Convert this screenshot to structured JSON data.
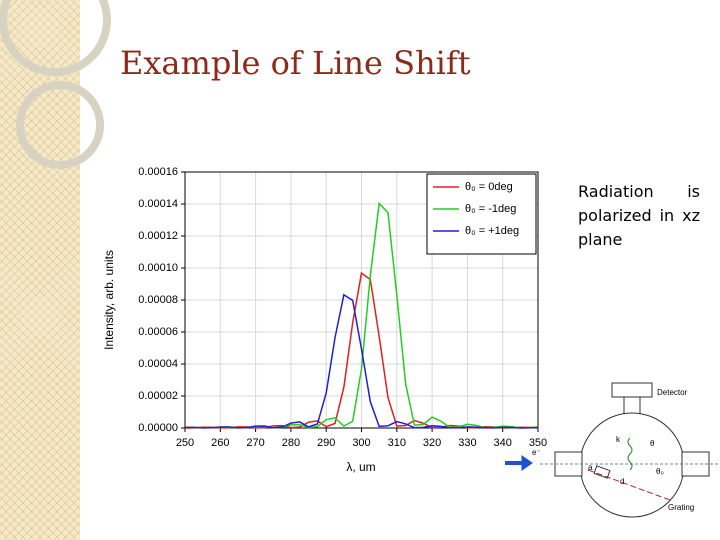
{
  "slide": {
    "title": "Example of Line Shift",
    "text": "Radiation is polarized in xz plane"
  },
  "chart_data": {
    "type": "line",
    "xlabel": "λ, um",
    "ylabel": "Intensity, arb. units",
    "x": [
      250,
      252.5,
      255,
      257.5,
      260,
      262.5,
      265,
      267.5,
      270,
      272.5,
      275,
      277.5,
      280,
      282.5,
      285,
      287.5,
      290,
      292.5,
      295,
      297.5,
      300,
      302.5,
      305,
      307.5,
      310,
      312.5,
      315,
      317.5,
      320,
      322.5,
      325,
      327.5,
      330,
      332.5,
      335,
      337.5,
      340,
      342.5,
      345,
      347.5,
      350
    ],
    "series": [
      {
        "name": "θ₀ = 0deg",
        "color": "#e02020",
        "values": [
          4e-08,
          9e-08,
          4.3e-07,
          4.3e-07,
          6e-08,
          1.4e-07,
          7.1e-07,
          7.2e-07,
          1e-07,
          2.6e-07,
          1.36e-06,
          1.46e-06,
          2.2e-07,
          6.1e-07,
          3.58e-06,
          4.41e-06,
          8e-07,
          2.89e-06,
          2.55e-05,
          6.57e-05,
          9.68e-05,
          9.28e-05,
          5.73e-05,
          1.9e-05,
          1.2e-06,
          1.58e-06,
          4.68e-06,
          2.96e-06,
          2.7e-07,
          4.5e-07,
          1.59e-06,
          1.15e-06,
          1.2e-07,
          2.1e-07,
          7.9e-07,
          6e-07,
          6e-08,
          1.2e-07,
          4.7e-07,
          3.7e-07,
          4e-08
        ]
      },
      {
        "name": "θ₀ = -1deg",
        "color": "#20d020",
        "values": [
          4.2e-07,
          4.1e-07,
          5e-08,
          1.3e-07,
          6.3e-07,
          6.2e-07,
          8e-08,
          2e-07,
          1.03e-06,
          1.04e-06,
          1.5e-07,
          3.7e-07,
          1.97e-06,
          2.11e-06,
          3.2e-07,
          8.8e-07,
          5.19e-06,
          6.39e-06,
          1.16e-06,
          4.19e-06,
          3.69e-05,
          9.53e-05,
          0.0001403,
          0.0001346,
          8.31e-05,
          2.76e-05,
          1.73e-06,
          2.29e-06,
          6.79e-06,
          4.28e-06,
          3.9e-07,
          6.6e-07,
          2.31e-06,
          1.66e-06,
          1.7e-07,
          3e-07,
          1.15e-06,
          8.8e-07,
          9e-08,
          1.8e-07,
          6.9e-07
        ]
      },
      {
        "name": "θ₀ = +1deg",
        "color": "#2020d0",
        "values": [
          3.7e-07,
          3.7e-07,
          5e-08,
          1.2e-07,
          6.1e-07,
          6.2e-07,
          9e-08,
          2.2e-07,
          1.17e-06,
          1.25e-06,
          1.9e-07,
          5.2e-07,
          3.08e-06,
          3.79e-06,
          6.9e-07,
          2.49e-06,
          2.19e-05,
          5.65e-05,
          8.32e-05,
          7.98e-05,
          4.93e-05,
          1.64e-05,
          1.03e-06,
          1.36e-06,
          4.02e-06,
          2.54e-06,
          2.3e-07,
          3.9e-07,
          1.37e-06,
          9.9e-07,
          1e-07,
          1.8e-07,
          6.8e-07,
          5.2e-07,
          6e-08,
          1e-07,
          4.1e-07,
          3.2e-07,
          3e-08,
          7e-08,
          2.7e-07
        ]
      }
    ],
    "xlim": [
      250,
      350
    ],
    "xticks": [
      250,
      260,
      270,
      280,
      290,
      300,
      310,
      320,
      330,
      340,
      350
    ],
    "ylim": [
      0,
      0.00016
    ],
    "yticks": [
      {
        "value": 0,
        "label": "0.00000"
      },
      {
        "value": 2e-05,
        "label": "0.00002"
      },
      {
        "value": 4e-05,
        "label": "0.00004"
      },
      {
        "value": 6e-05,
        "label": "0.00006"
      },
      {
        "value": 8e-05,
        "label": "0.00008"
      },
      {
        "value": 0.0001,
        "label": "0.00010"
      },
      {
        "value": 0.00012,
        "label": "0.00012"
      },
      {
        "value": 0.00014,
        "label": "0.00014"
      },
      {
        "value": 0.00016,
        "label": "0.00016"
      }
    ],
    "grid": true,
    "legend": "upper right"
  },
  "diagram": {
    "detector": "Detector",
    "grating": "Grating",
    "k": "k",
    "theta": "θ",
    "theta0": "θ₀",
    "a": "a",
    "d": "d",
    "electron": "e⁻"
  }
}
